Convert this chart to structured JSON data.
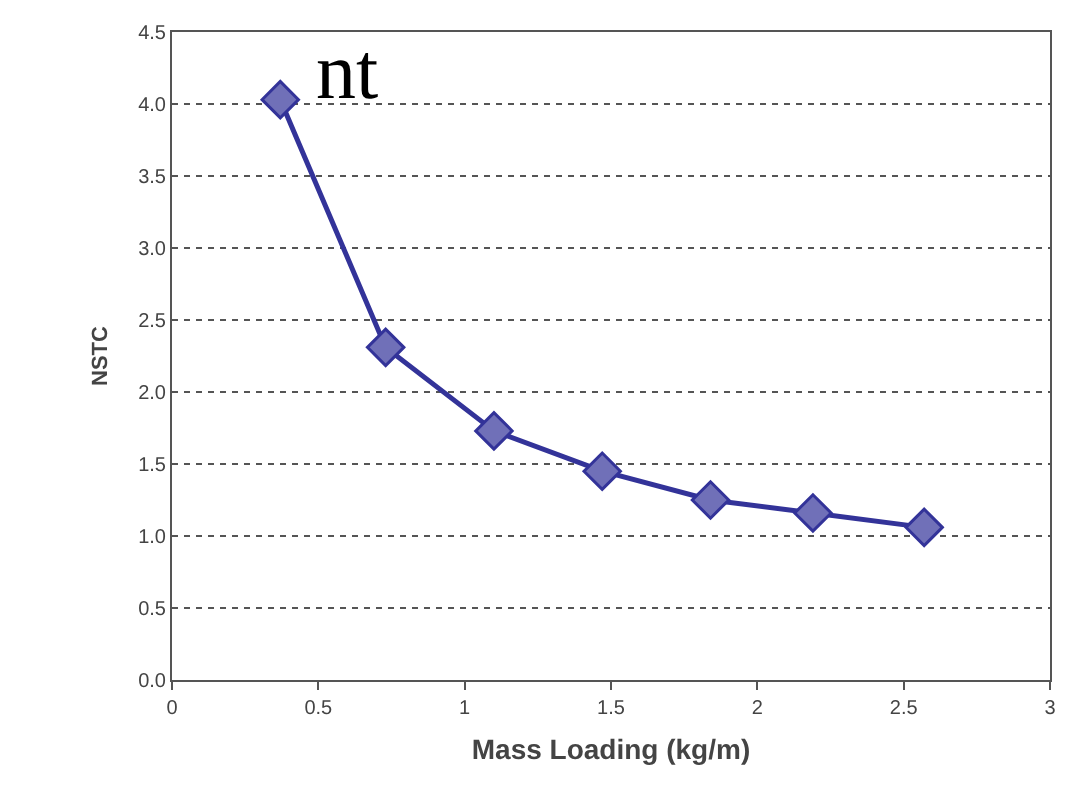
{
  "chart_data": {
    "type": "line",
    "xlabel": "Mass Loading (kg/m)",
    "ylabel": "NSTC",
    "x": [
      0.37,
      0.73,
      1.1,
      1.47,
      1.84,
      2.19,
      2.57
    ],
    "series": [
      {
        "color": "#333399",
        "values": [
          4.03,
          2.31,
          1.73,
          1.45,
          1.25,
          1.16,
          1.06
        ]
      }
    ],
    "xlim": [
      0,
      3
    ],
    "xticks": [
      0,
      0.5,
      1,
      1.5,
      2,
      2.5,
      3
    ],
    "ylim": [
      0,
      4.5
    ],
    "yticks": [
      {
        "value": 0,
        "label": "0.0"
      },
      {
        "value": 0.5,
        "label": "0.5"
      },
      {
        "value": 1,
        "label": "1.0"
      },
      {
        "value": 1.5,
        "label": "1.5"
      },
      {
        "value": 2,
        "label": "2.0"
      },
      {
        "value": 2.5,
        "label": "2.5"
      },
      {
        "value": 3,
        "label": "3.0"
      },
      {
        "value": 3.5,
        "label": "3.5"
      },
      {
        "value": 4,
        "label": "4.0"
      },
      {
        "value": 4.5,
        "label": "4.5"
      }
    ],
    "grid": "y",
    "marker": "diamond",
    "line_style": "solid",
    "annotations": [
      "nt"
    ]
  }
}
